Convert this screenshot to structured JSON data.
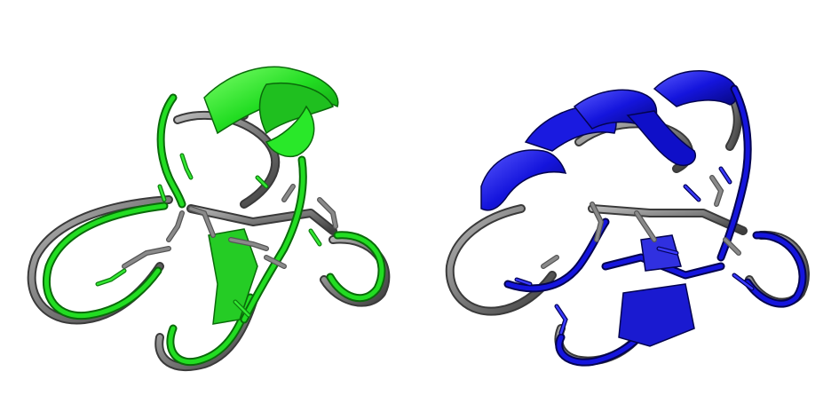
{
  "figure": {
    "panels": [
      {
        "id": "left",
        "name": "protein-overlay-green-gray",
        "colors": {
          "model": "#22dd22",
          "model_dark": "#139a13",
          "reference": "#7a7a7a",
          "reference_dark": "#4a4a4a"
        }
      },
      {
        "id": "right",
        "name": "protein-overlay-blue-gray",
        "colors": {
          "model": "#1212d8",
          "model_dark": "#06067a",
          "reference": "#7a7a7a",
          "reference_dark": "#4a4a4a"
        }
      }
    ],
    "background": "#ffffff"
  }
}
